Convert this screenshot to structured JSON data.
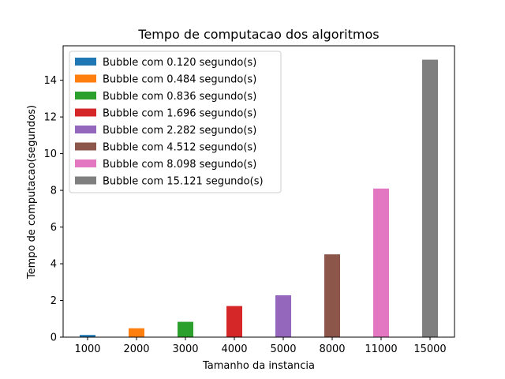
{
  "chart_data": {
    "type": "bar",
    "title": "Tempo de computacao dos algoritmos",
    "xlabel": "Tamanho da instancia",
    "ylabel": "Tempo de computacao(segundos)",
    "categories": [
      "1000",
      "2000",
      "3000",
      "4000",
      "5000",
      "8000",
      "11000",
      "15000"
    ],
    "values": [
      0.12,
      0.484,
      0.836,
      1.696,
      2.282,
      4.512,
      8.098,
      15.121
    ],
    "colors": [
      "#1f77b4",
      "#ff7f0e",
      "#2ca02c",
      "#d62728",
      "#9467bd",
      "#8c564b",
      "#e377c2",
      "#7f7f7f"
    ],
    "legend": [
      "Bubble com 0.120 segundo(s)",
      "Bubble com 0.484 segundo(s)",
      "Bubble com 0.836 segundo(s)",
      "Bubble com 1.696 segundo(s)",
      "Bubble com 2.282 segundo(s)",
      "Bubble com 4.512 segundo(s)",
      "Bubble com 8.098 segundo(s)",
      "Bubble com 15.121 segundo(s)"
    ],
    "legend_position": "upper-left",
    "yticks": [
      0,
      2,
      4,
      6,
      8,
      10,
      12,
      14
    ],
    "ylim": [
      0,
      15.877
    ],
    "grid": false
  }
}
